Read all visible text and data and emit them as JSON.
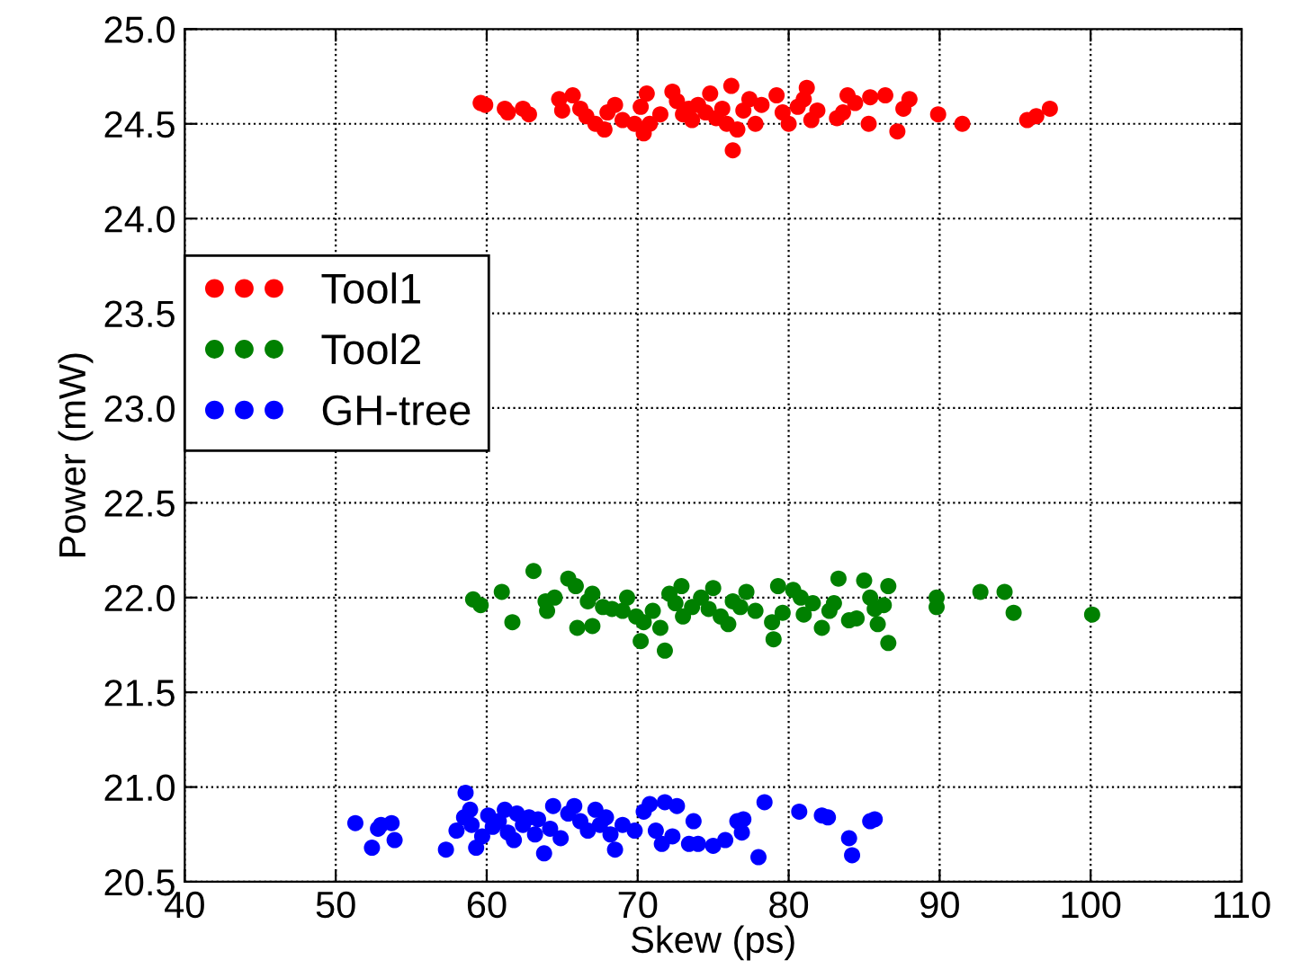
{
  "chart_data": {
    "type": "scatter",
    "xlabel": "Skew (ps)",
    "ylabel": "Power (mW)",
    "xlim": [
      40,
      110
    ],
    "ylim": [
      20.5,
      25.0
    ],
    "xticks": [
      40,
      50,
      60,
      70,
      80,
      90,
      100,
      110
    ],
    "yticks": [
      {
        "value": 20.5,
        "label": "20.5"
      },
      {
        "value": 21.0,
        "label": "21.0"
      },
      {
        "value": 21.5,
        "label": "21.5"
      },
      {
        "value": 22.0,
        "label": "22.0"
      },
      {
        "value": 22.5,
        "label": "22.5"
      },
      {
        "value": 23.0,
        "label": "23.0"
      },
      {
        "value": 23.5,
        "label": "23.5"
      },
      {
        "value": 24.0,
        "label": "24.0"
      },
      {
        "value": 24.5,
        "label": "24.5"
      },
      {
        "value": 25.0,
        "label": "25.0"
      }
    ],
    "grid": true,
    "legend": "left",
    "marker": "circle",
    "series": [
      {
        "name": "Tool1",
        "color": "#ff0000",
        "x": [
          59.6,
          59.9,
          61.2,
          61.4,
          62.4,
          62.8,
          64.8,
          65.7,
          65.0,
          66.2,
          66.6,
          67.2,
          67.8,
          68.0,
          68.5,
          69.0,
          69.8,
          70.4,
          70.8,
          70.2,
          70.6,
          71.5,
          72.3,
          72.6,
          73.0,
          73.4,
          73.6,
          74.0,
          74.5,
          74.8,
          75.2,
          75.6,
          75.9,
          76.2,
          76.3,
          76.6,
          77.0,
          77.4,
          77.8,
          78.2,
          79.2,
          79.6,
          80.0,
          80.6,
          81.0,
          81.2,
          81.5,
          81.9,
          83.2,
          83.6,
          83.9,
          84.4,
          85.4,
          85.3,
          86.4,
          87.2,
          87.6,
          88.0,
          89.9,
          91.5,
          95.8,
          96.4,
          97.3
        ],
        "values": [
          24.61,
          24.6,
          24.58,
          24.56,
          24.58,
          24.55,
          24.63,
          24.65,
          24.57,
          24.58,
          24.54,
          24.5,
          24.47,
          24.56,
          24.6,
          24.52,
          24.5,
          24.45,
          24.5,
          24.59,
          24.66,
          24.55,
          24.67,
          24.62,
          24.55,
          24.58,
          24.52,
          24.6,
          24.56,
          24.66,
          24.53,
          24.58,
          24.5,
          24.7,
          24.36,
          24.47,
          24.57,
          24.63,
          24.5,
          24.6,
          24.65,
          24.56,
          24.5,
          24.59,
          24.63,
          24.69,
          24.52,
          24.57,
          24.53,
          24.56,
          24.65,
          24.61,
          24.64,
          24.5,
          24.65,
          24.46,
          24.58,
          24.63,
          24.55,
          24.5,
          24.52,
          24.54,
          24.58
        ]
      },
      {
        "name": "Tool2",
        "color": "#008000",
        "x": [
          59.1,
          59.6,
          61.0,
          61.7,
          63.1,
          63.9,
          64.0,
          64.5,
          65.4,
          65.9,
          66.0,
          66.7,
          67.0,
          67.0,
          67.7,
          68.3,
          69.0,
          69.3,
          69.9,
          70.2,
          70.4,
          71.0,
          71.5,
          71.8,
          72.1,
          72.5,
          72.9,
          73.0,
          73.6,
          74.2,
          74.7,
          75.0,
          75.5,
          76.0,
          76.3,
          76.8,
          77.2,
          77.8,
          78.9,
          79.0,
          79.3,
          79.6,
          80.3,
          80.8,
          81.0,
          81.6,
          82.2,
          82.7,
          83.0,
          83.3,
          84.0,
          84.5,
          85.0,
          85.4,
          85.7,
          85.9,
          86.3,
          86.6,
          86.6,
          89.8,
          89.8,
          92.7,
          94.3,
          94.9,
          100.1
        ],
        "values": [
          21.99,
          21.96,
          22.03,
          21.87,
          22.14,
          21.98,
          21.93,
          22.0,
          22.1,
          22.06,
          21.84,
          21.98,
          22.02,
          21.85,
          21.95,
          21.94,
          21.93,
          22.0,
          21.9,
          21.77,
          21.87,
          21.93,
          21.84,
          21.72,
          22.02,
          21.97,
          22.06,
          21.9,
          21.95,
          22.0,
          21.94,
          22.05,
          21.9,
          21.86,
          21.98,
          21.95,
          22.03,
          21.93,
          21.87,
          21.78,
          22.06,
          21.92,
          22.04,
          22.0,
          21.91,
          21.97,
          21.84,
          21.93,
          21.97,
          22.1,
          21.88,
          21.89,
          22.09,
          22.0,
          21.94,
          21.86,
          21.96,
          22.06,
          21.76,
          22.0,
          21.95,
          22.03,
          22.03,
          21.92,
          21.91
        ]
      },
      {
        "name": "GH-tree",
        "color": "#0000ff",
        "x": [
          51.3,
          52.4,
          52.8,
          53.0,
          53.7,
          53.9,
          57.3,
          58.0,
          58.5,
          58.6,
          58.9,
          59.0,
          59.3,
          59.7,
          60.1,
          60.4,
          60.8,
          61.2,
          61.4,
          61.8,
          62.0,
          62.4,
          62.8,
          63.2,
          63.4,
          63.8,
          64.2,
          64.4,
          64.9,
          65.4,
          65.8,
          66.2,
          66.7,
          67.2,
          67.5,
          67.9,
          68.2,
          68.5,
          69.0,
          69.8,
          70.4,
          70.8,
          71.2,
          71.6,
          71.8,
          72.3,
          72.6,
          73.4,
          73.7,
          74.0,
          75.0,
          75.8,
          76.6,
          76.9,
          77.0,
          78.0,
          78.4,
          80.7,
          82.2,
          82.6,
          84.0,
          84.2,
          85.4,
          85.7
        ],
        "values": [
          20.81,
          20.68,
          20.78,
          20.8,
          20.81,
          20.72,
          20.67,
          20.77,
          20.84,
          20.97,
          20.88,
          20.8,
          20.68,
          20.74,
          20.85,
          20.79,
          20.82,
          20.88,
          20.76,
          20.72,
          20.86,
          20.8,
          20.84,
          20.75,
          20.83,
          20.65,
          20.78,
          20.9,
          20.73,
          20.86,
          20.9,
          20.82,
          20.77,
          20.88,
          20.8,
          20.84,
          20.75,
          20.67,
          20.8,
          20.77,
          20.87,
          20.91,
          20.77,
          20.7,
          20.92,
          20.74,
          20.9,
          20.7,
          20.82,
          20.7,
          20.69,
          20.72,
          20.82,
          20.76,
          20.83,
          20.63,
          20.92,
          20.87,
          20.85,
          20.84,
          20.73,
          20.64,
          20.82,
          20.83
        ]
      }
    ]
  }
}
